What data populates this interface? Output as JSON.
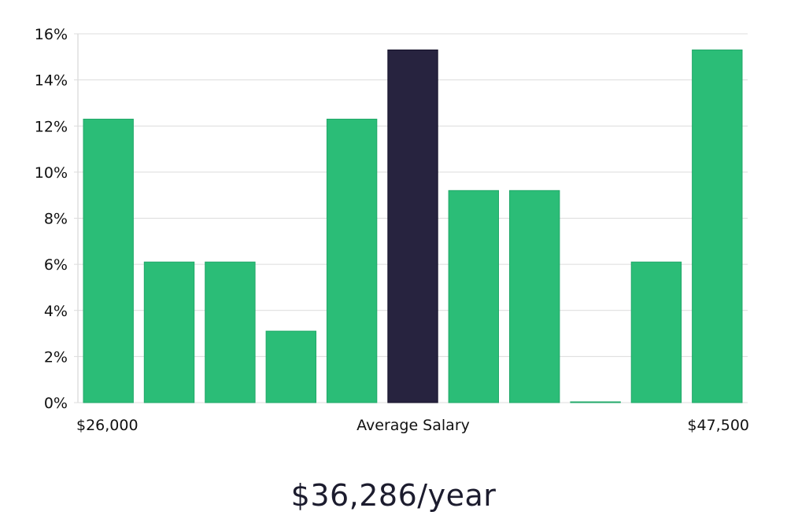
{
  "chart_data": {
    "type": "bar",
    "title": "",
    "xlabel": "",
    "ylabel": "",
    "ylim": [
      0,
      16
    ],
    "yticks": [
      0,
      2,
      4,
      6,
      8,
      10,
      12,
      14,
      16
    ],
    "ytick_suffix": "%",
    "grid": true,
    "values": [
      12.3,
      6.1,
      6.1,
      3.1,
      12.3,
      15.3,
      9.2,
      9.2,
      0.0,
      6.1,
      15.3
    ],
    "highlight_index": 5,
    "x_labels": {
      "left": "$26,000",
      "center": "Average Salary",
      "right": "$47,500"
    },
    "colors": {
      "bar": "#2bbd77",
      "highlight": "#27233f",
      "grid": "#dcdcdc"
    }
  },
  "summary": {
    "average_salary": "$36,286/year"
  }
}
